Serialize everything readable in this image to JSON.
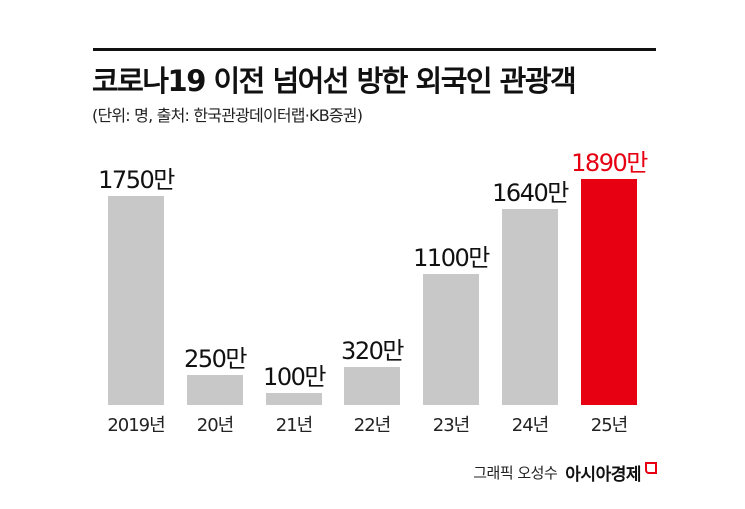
{
  "header": {
    "title": "코로나19 이전 넘어선 방한 외국인 관광객",
    "subtitle": "(단위: 명, 출처: 한국관광데이터랩·KB증권)"
  },
  "credit": {
    "author": "그래픽 오성수",
    "brand": "아시아경제"
  },
  "colors": {
    "bar": "#c8c8c8",
    "highlight": "#e60012",
    "text": "#111111"
  },
  "chart_data": {
    "type": "bar",
    "title": "코로나19 이전 넘어선 방한 외국인 관광객",
    "subtitle": "(단위: 명, 출처: 한국관광데이터랩·KB증권)",
    "xlabel": "",
    "ylabel": "명",
    "categories": [
      "2019년",
      "20년",
      "21년",
      "22년",
      "23년",
      "24년",
      "25년"
    ],
    "values": [
      17500000,
      2500000,
      1000000,
      3200000,
      11000000,
      16400000,
      18900000
    ],
    "value_labels": [
      "1750만",
      "250만",
      "100만",
      "320만",
      "1100만",
      "1640만",
      "1890만"
    ],
    "highlight_index": 6,
    "grid": false,
    "legend": null,
    "ylim": [
      0,
      19000000
    ]
  }
}
